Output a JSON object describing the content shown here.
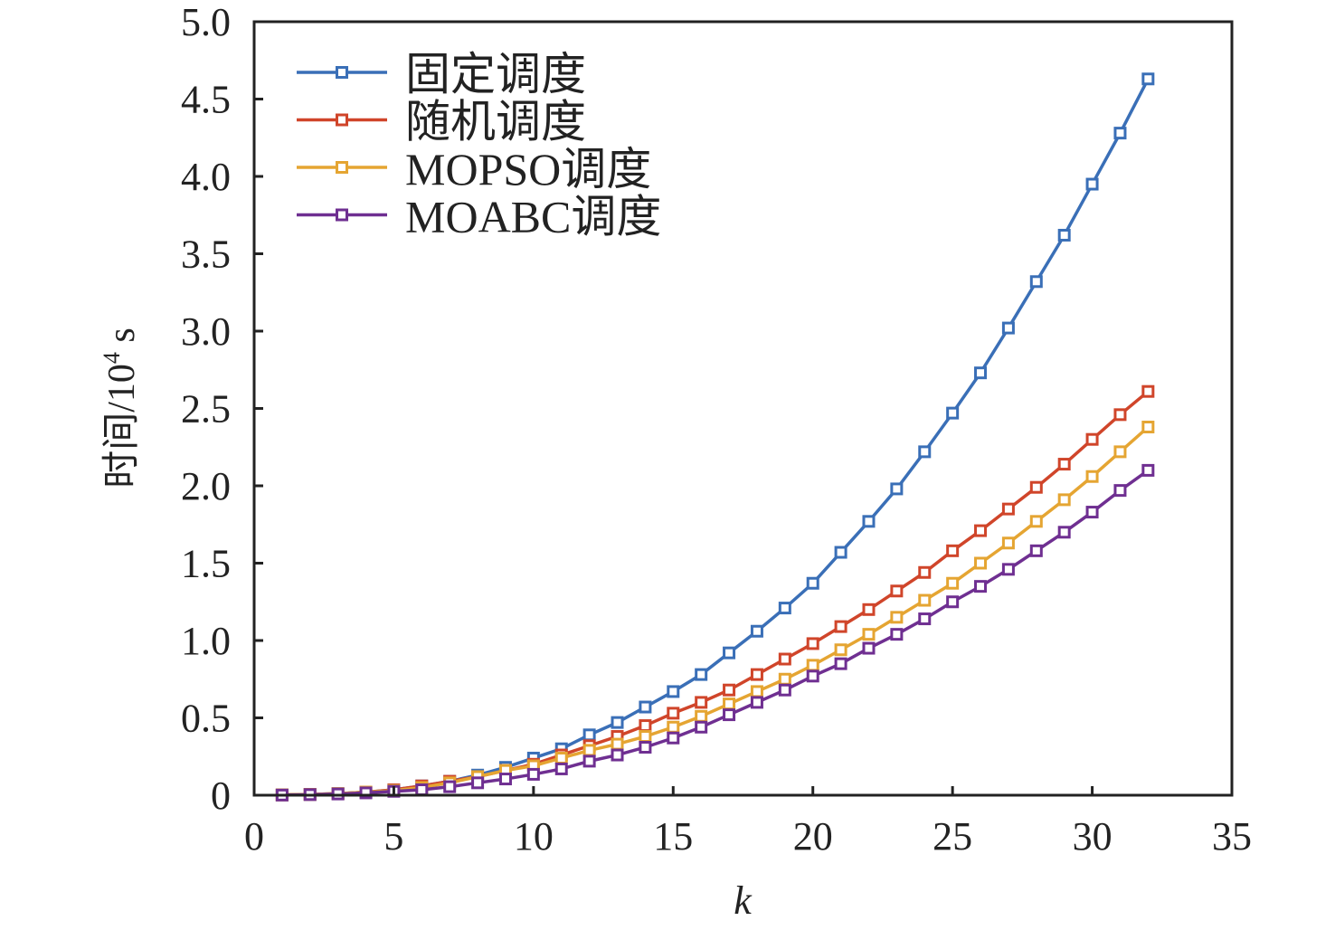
{
  "chart_data": {
    "type": "line",
    "title": "",
    "xlabel": "k",
    "ylabel": "时间/10",
    "ylabel_sup": "4",
    "ylabel_unit": " s",
    "xlim": [
      0,
      35
    ],
    "ylim": [
      0,
      5.0
    ],
    "xticks": [
      "0",
      "5",
      "10",
      "15",
      "20",
      "25",
      "30",
      "35"
    ],
    "yticks": [
      "0",
      "0.5",
      "1.0",
      "1.5",
      "2.0",
      "2.5",
      "3.0",
      "3.5",
      "4.0",
      "4.5",
      "5.0"
    ],
    "grid": false,
    "legend_position": "top-left",
    "marker": "square",
    "x": [
      1,
      2,
      3,
      4,
      5,
      6,
      7,
      8,
      9,
      10,
      11,
      12,
      13,
      14,
      15,
      16,
      17,
      18,
      19,
      20,
      21,
      22,
      23,
      24,
      25,
      26,
      27,
      28,
      29,
      30,
      31,
      32
    ],
    "series": [
      {
        "name": "固定调度",
        "color": "#3a6fb7",
        "values": [
          0.002,
          0.005,
          0.01,
          0.02,
          0.035,
          0.06,
          0.09,
          0.13,
          0.18,
          0.24,
          0.3,
          0.39,
          0.47,
          0.57,
          0.67,
          0.78,
          0.92,
          1.06,
          1.21,
          1.37,
          1.57,
          1.77,
          1.98,
          2.22,
          2.47,
          2.73,
          3.02,
          3.32,
          3.62,
          3.95,
          4.28,
          4.63
        ]
      },
      {
        "name": "随机调度",
        "color": "#d0452a",
        "values": [
          0.002,
          0.005,
          0.01,
          0.02,
          0.035,
          0.06,
          0.09,
          0.12,
          0.16,
          0.2,
          0.26,
          0.32,
          0.38,
          0.45,
          0.53,
          0.6,
          0.68,
          0.78,
          0.88,
          0.98,
          1.09,
          1.2,
          1.32,
          1.44,
          1.58,
          1.71,
          1.85,
          1.99,
          2.14,
          2.3,
          2.46,
          2.61
        ]
      },
      {
        "name": "MOPSO调度",
        "color": "#e5a532",
        "values": [
          0.002,
          0.005,
          0.01,
          0.02,
          0.03,
          0.05,
          0.08,
          0.12,
          0.16,
          0.19,
          0.24,
          0.29,
          0.33,
          0.38,
          0.44,
          0.51,
          0.59,
          0.67,
          0.75,
          0.84,
          0.94,
          1.04,
          1.15,
          1.26,
          1.37,
          1.5,
          1.63,
          1.77,
          1.91,
          2.06,
          2.22,
          2.38
        ]
      },
      {
        "name": "MOABC调度",
        "color": "#6f2f91",
        "values": [
          0.001,
          0.004,
          0.008,
          0.015,
          0.025,
          0.035,
          0.055,
          0.08,
          0.105,
          0.135,
          0.17,
          0.22,
          0.26,
          0.31,
          0.37,
          0.44,
          0.52,
          0.6,
          0.68,
          0.77,
          0.85,
          0.95,
          1.04,
          1.14,
          1.25,
          1.35,
          1.46,
          1.58,
          1.7,
          1.83,
          1.97,
          2.1
        ]
      }
    ]
  }
}
